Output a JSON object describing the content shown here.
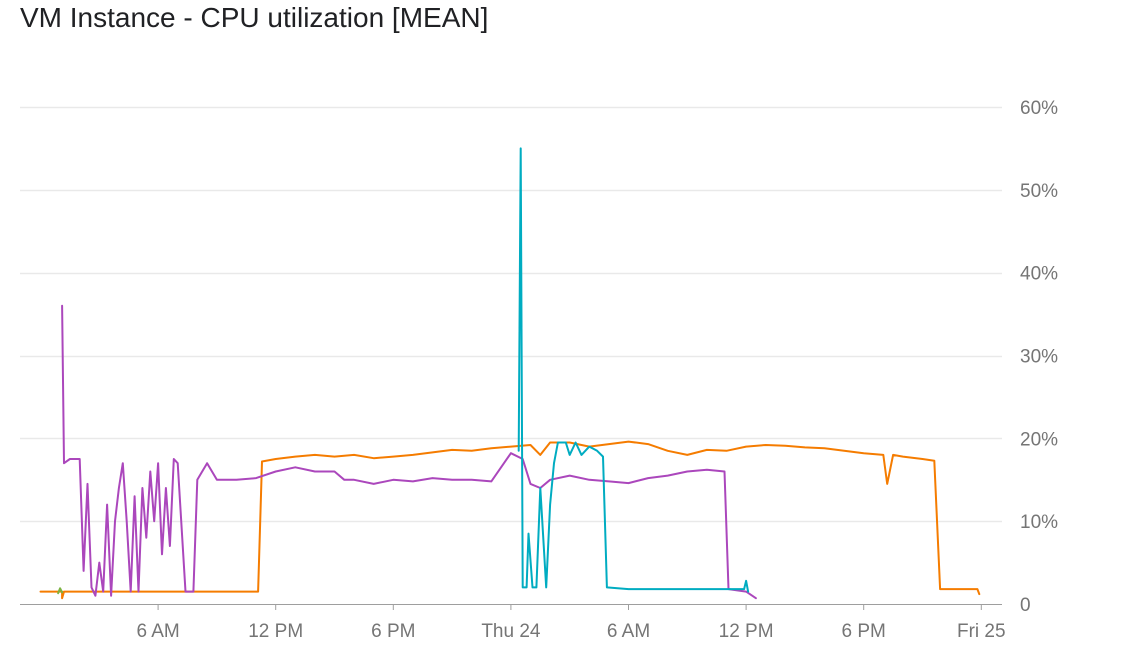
{
  "title": "VM Instance - CPU utilization [MEAN]",
  "chart_data": {
    "type": "line",
    "title": "VM Instance - CPU utilization [MEAN]",
    "x_unit": "hours since Wed 00:00",
    "xlim": [
      0,
      49.9
    ],
    "ylim": [
      0,
      60
    ],
    "y_axis_position": "right",
    "grid": true,
    "legend": "none",
    "y_ticks": [
      {
        "value": 0,
        "label": "0"
      },
      {
        "value": 10,
        "label": "10%"
      },
      {
        "value": 20,
        "label": "20%"
      },
      {
        "value": 30,
        "label": "30%"
      },
      {
        "value": 40,
        "label": "40%"
      },
      {
        "value": 50,
        "label": "50%"
      },
      {
        "value": 60,
        "label": "60%"
      }
    ],
    "x_ticks": [
      {
        "value": 6,
        "label": "6 AM"
      },
      {
        "value": 12,
        "label": "12 PM"
      },
      {
        "value": 18,
        "label": "6 PM"
      },
      {
        "value": 24,
        "label": "Thu 24"
      },
      {
        "value": 30,
        "label": "6 AM"
      },
      {
        "value": 36,
        "label": "12 PM"
      },
      {
        "value": 42,
        "label": "6 PM"
      },
      {
        "value": 48,
        "label": "Fri 25"
      }
    ],
    "series": [
      {
        "color": "#f57c00",
        "points": [
          [
            0,
            1.5
          ],
          [
            1.1,
            1.5
          ],
          [
            1.1,
            0.7
          ],
          [
            1.2,
            1.5
          ],
          [
            2,
            1.5
          ],
          [
            4,
            1.5
          ],
          [
            6,
            1.5
          ],
          [
            8,
            1.5
          ],
          [
            10,
            1.5
          ],
          [
            11.1,
            1.5
          ],
          [
            11.3,
            17.2
          ],
          [
            12,
            17.5
          ],
          [
            13,
            17.8
          ],
          [
            14,
            18
          ],
          [
            15,
            17.8
          ],
          [
            16,
            18
          ],
          [
            17,
            17.6
          ],
          [
            18,
            17.8
          ],
          [
            19,
            18
          ],
          [
            20,
            18.3
          ],
          [
            21,
            18.6
          ],
          [
            22,
            18.5
          ],
          [
            23,
            18.8
          ],
          [
            24,
            19
          ],
          [
            25,
            19.2
          ],
          [
            25.5,
            18
          ],
          [
            26,
            19.5
          ],
          [
            27,
            19.5
          ],
          [
            28,
            19
          ],
          [
            29,
            19.3
          ],
          [
            30,
            19.6
          ],
          [
            31,
            19.3
          ],
          [
            32,
            18.5
          ],
          [
            33,
            18
          ],
          [
            34,
            18.6
          ],
          [
            35,
            18.5
          ],
          [
            36,
            19
          ],
          [
            37,
            19.2
          ],
          [
            38,
            19.1
          ],
          [
            39,
            18.9
          ],
          [
            40,
            18.8
          ],
          [
            41,
            18.5
          ],
          [
            42,
            18.2
          ],
          [
            43,
            18
          ],
          [
            43.2,
            14.5
          ],
          [
            43.5,
            18
          ],
          [
            44,
            17.8
          ],
          [
            45,
            17.5
          ],
          [
            45.6,
            17.3
          ],
          [
            45.9,
            1.8
          ],
          [
            47,
            1.8
          ],
          [
            47.8,
            1.8
          ],
          [
            47.9,
            1.2
          ]
        ]
      },
      {
        "color": "#ab47bc",
        "points": [
          [
            1.1,
            36
          ],
          [
            1.2,
            17
          ],
          [
            1.5,
            17.5
          ],
          [
            2,
            17.5
          ],
          [
            2.2,
            4
          ],
          [
            2.4,
            14.5
          ],
          [
            2.6,
            2
          ],
          [
            2.8,
            1
          ],
          [
            3,
            5
          ],
          [
            3.2,
            1.5
          ],
          [
            3.4,
            12
          ],
          [
            3.6,
            1
          ],
          [
            3.8,
            10
          ],
          [
            4,
            14
          ],
          [
            4.2,
            17
          ],
          [
            4.4,
            10
          ],
          [
            4.6,
            1.5
          ],
          [
            4.8,
            13
          ],
          [
            5,
            1.5
          ],
          [
            5.2,
            14
          ],
          [
            5.4,
            8
          ],
          [
            5.6,
            16
          ],
          [
            5.8,
            10
          ],
          [
            6,
            17
          ],
          [
            6.2,
            6
          ],
          [
            6.4,
            14
          ],
          [
            6.6,
            7
          ],
          [
            6.8,
            17.5
          ],
          [
            7,
            17
          ],
          [
            7.4,
            1.5
          ],
          [
            7.8,
            1.5
          ],
          [
            8,
            15
          ],
          [
            8.5,
            17
          ],
          [
            9,
            15
          ],
          [
            10,
            15
          ],
          [
            11,
            15.2
          ],
          [
            12,
            16
          ],
          [
            13,
            16.5
          ],
          [
            14,
            16
          ],
          [
            15,
            16
          ],
          [
            15.5,
            15
          ],
          [
            16,
            15
          ],
          [
            17,
            14.5
          ],
          [
            18,
            15
          ],
          [
            19,
            14.8
          ],
          [
            20,
            15.2
          ],
          [
            21,
            15
          ],
          [
            22,
            15
          ],
          [
            23,
            14.8
          ],
          [
            24,
            18.2
          ],
          [
            24.6,
            17.5
          ],
          [
            25,
            14.5
          ],
          [
            25.5,
            14
          ],
          [
            26,
            15
          ],
          [
            27,
            15.5
          ],
          [
            28,
            15
          ],
          [
            29,
            14.8
          ],
          [
            30,
            14.6
          ],
          [
            31,
            15.2
          ],
          [
            32,
            15.5
          ],
          [
            33,
            16
          ],
          [
            34,
            16.2
          ],
          [
            34.9,
            16
          ],
          [
            35.1,
            1.8
          ],
          [
            36,
            1.5
          ],
          [
            36.5,
            0.7
          ]
        ]
      },
      {
        "color": "#00acc1",
        "points": [
          [
            24.4,
            18.5
          ],
          [
            24.5,
            55
          ],
          [
            24.6,
            2
          ],
          [
            24.8,
            2
          ],
          [
            24.9,
            8.5
          ],
          [
            25.1,
            2
          ],
          [
            25.3,
            2
          ],
          [
            25.5,
            14
          ],
          [
            25.8,
            2
          ],
          [
            26,
            12
          ],
          [
            26.2,
            17
          ],
          [
            26.4,
            19.5
          ],
          [
            26.8,
            19.5
          ],
          [
            27,
            18
          ],
          [
            27.3,
            19.5
          ],
          [
            27.6,
            18
          ],
          [
            28,
            19
          ],
          [
            28.4,
            18.5
          ],
          [
            28.7,
            17.8
          ],
          [
            28.9,
            2
          ],
          [
            30,
            1.8
          ],
          [
            31,
            1.8
          ],
          [
            32,
            1.8
          ],
          [
            33,
            1.8
          ],
          [
            34,
            1.8
          ],
          [
            35,
            1.8
          ],
          [
            35.9,
            1.8
          ],
          [
            36,
            2.8
          ],
          [
            36.1,
            1.5
          ]
        ]
      },
      {
        "color": "#7cb342",
        "points": [
          [
            0.9,
            1.3
          ],
          [
            1,
            1.9
          ],
          [
            1.1,
            1.4
          ]
        ]
      }
    ]
  }
}
